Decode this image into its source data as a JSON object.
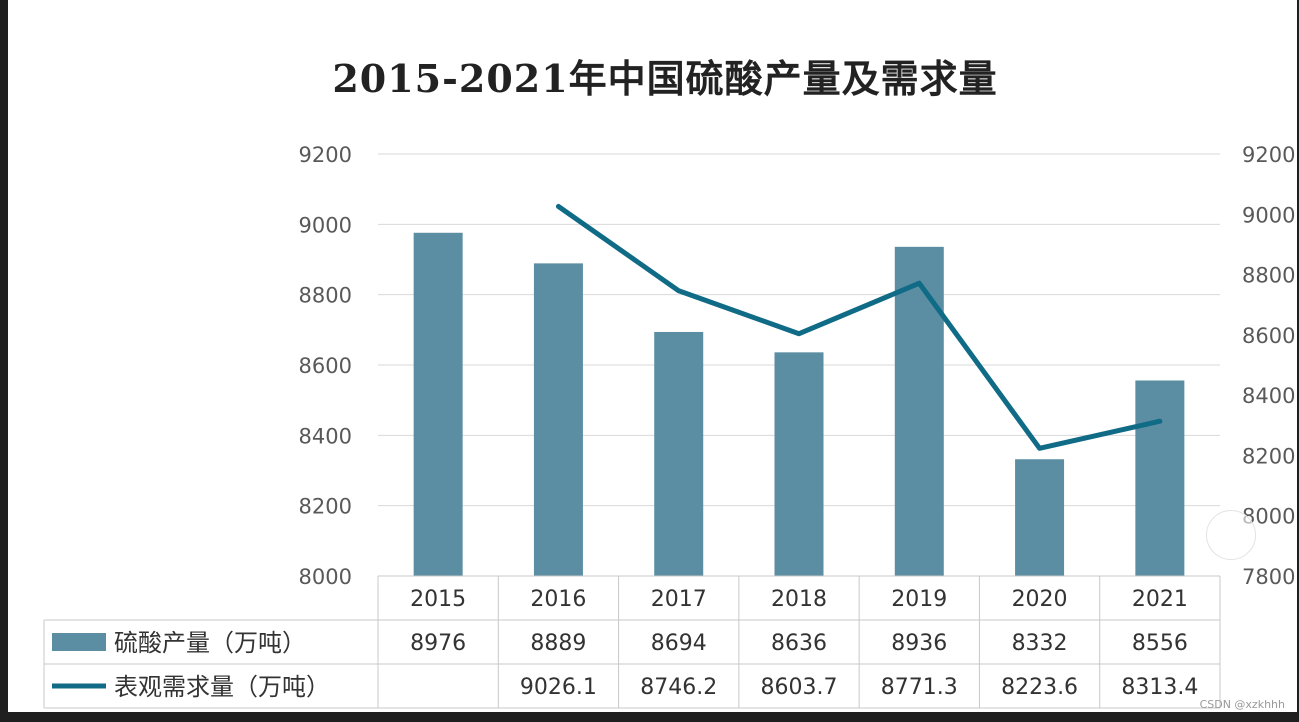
{
  "chart_data": {
    "type": "bar",
    "title": "2015-2021年中国硫酸产量及需求量",
    "categories": [
      "2015",
      "2016",
      "2017",
      "2018",
      "2019",
      "2020",
      "2021"
    ],
    "series": [
      {
        "name": "硫酸产量（万吨）",
        "type": "bar",
        "axis": "left",
        "values": [
          8976,
          8889,
          8694,
          8636,
          8936,
          8332,
          8556
        ],
        "labels": [
          "8976",
          "8889",
          "8694",
          "8636",
          "8936",
          "8332",
          "8556"
        ],
        "color": "#5b8ea3"
      },
      {
        "name": "表观需求量（万吨）",
        "type": "line",
        "axis": "right",
        "values": [
          null,
          9026.1,
          8746.2,
          8603.7,
          8771.3,
          8223.6,
          8313.4
        ],
        "labels": [
          "",
          "9026.1",
          "8746.2",
          "8603.7",
          "8771.3",
          "8223.6",
          "8313.4"
        ],
        "color": "#106b86"
      }
    ],
    "left_axis": {
      "ylim": [
        8000,
        9200
      ],
      "ticks": [
        "9200",
        "9000",
        "8800",
        "8600",
        "8400",
        "8200",
        "8000"
      ]
    },
    "right_axis": {
      "ylim": [
        7800,
        9200
      ],
      "ticks": [
        "9200",
        "9000",
        "8800",
        "8600",
        "8400",
        "8200",
        "8000",
        "7800"
      ]
    },
    "grid": true,
    "legend": "data-table"
  },
  "watermark": "CSDN @xzkhhh"
}
